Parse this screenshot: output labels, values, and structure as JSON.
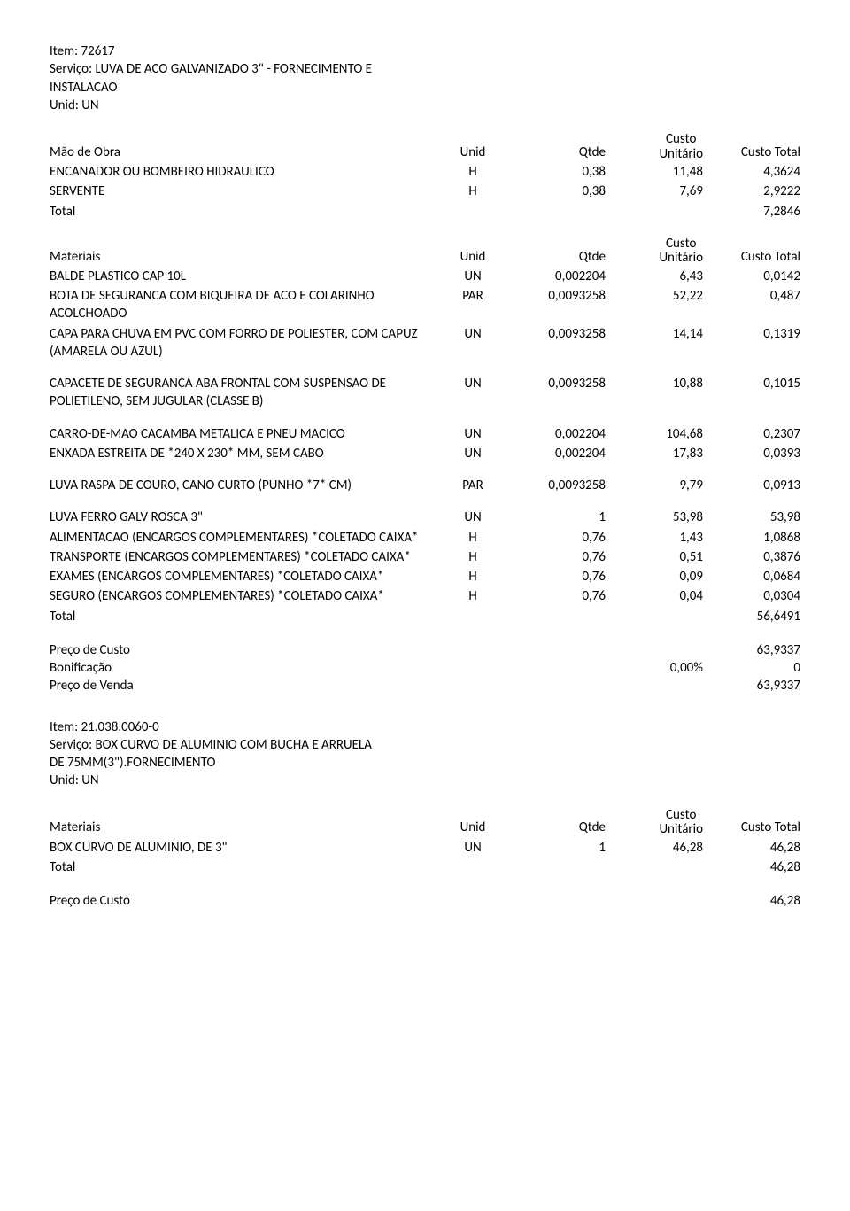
{
  "header1": {
    "item_label": "Item:",
    "item_value": "72617",
    "servico_label": "Serviço:",
    "servico_value": "LUVA DE ACO GALVANIZADO 3\" - FORNECIMENTO E",
    "servico_cont": "INSTALACAO",
    "unid_label": "Unid:",
    "unid_value": "UN"
  },
  "labels": {
    "mao_de_obra": "Mão de Obra",
    "materiais": "Materiais",
    "unid": "Unid",
    "qtde": "Qtde",
    "custo": "Custo",
    "unitario": "Unitário",
    "custo_total": "Custo Total",
    "total": "Total",
    "preco_custo": "Preço de Custo",
    "bonificacao": "Bonificação",
    "preco_venda": "Preço de Venda"
  },
  "mao_rows": [
    {
      "desc": "ENCANADOR OU BOMBEIRO HIDRAULICO",
      "unid": "H",
      "qtde": "0,38",
      "cu": "11,48",
      "ct": "4,3624"
    },
    {
      "desc": "SERVENTE",
      "unid": "H",
      "qtde": "0,38",
      "cu": "7,69",
      "ct": "2,9222"
    }
  ],
  "mao_total": "7,2846",
  "mat_rows": [
    {
      "desc": "BALDE PLASTICO CAP 10L",
      "unid": "UN",
      "qtde": "0,002204",
      "cu": "6,43",
      "ct": "0,0142"
    },
    {
      "desc": "BOTA DE SEGURANCA COM BIQUEIRA DE ACO E COLARINHO ACOLCHOADO",
      "unid": "PAR",
      "qtde": "0,0093258",
      "cu": "52,22",
      "ct": "0,487"
    },
    {
      "desc": "CAPA PARA CHUVA EM PVC COM FORRO DE POLIESTER, COM CAPUZ (AMARELA OU AZUL)",
      "unid": "UN",
      "qtde": "0,0093258",
      "cu": "14,14",
      "ct": "0,1319"
    },
    {
      "desc": "CAPACETE DE SEGURANCA ABA FRONTAL COM SUSPENSAO DE POLIETILENO, SEM JUGULAR (CLASSE B)",
      "unid": "UN",
      "qtde": "0,0093258",
      "cu": "10,88",
      "ct": "0,1015"
    },
    {
      "desc": "CARRO-DE-MAO CACAMBA METALICA E PNEU MACICO",
      "unid": "UN",
      "qtde": "0,002204",
      "cu": "104,68",
      "ct": "0,2307"
    },
    {
      "desc": "ENXADA ESTREITA DE *240 X 230* MM, SEM CABO",
      "unid": "UN",
      "qtde": "0,002204",
      "cu": "17,83",
      "ct": "0,0393"
    },
    {
      "desc": "LUVA RASPA DE COURO, CANO CURTO (PUNHO *7* CM)",
      "unid": "PAR",
      "qtde": "0,0093258",
      "cu": "9,79",
      "ct": "0,0913"
    },
    {
      "desc": "LUVA FERRO GALV ROSCA 3\"",
      "unid": "UN",
      "qtde": "1",
      "cu": "53,98",
      "ct": "53,98"
    },
    {
      "desc": "ALIMENTACAO (ENCARGOS COMPLEMENTARES) *COLETADO CAIXA*",
      "unid": "H",
      "qtde": "0,76",
      "cu": "1,43",
      "ct": "1,0868"
    },
    {
      "desc": "TRANSPORTE (ENCARGOS COMPLEMENTARES) *COLETADO CAIXA*",
      "unid": "H",
      "qtde": "0,76",
      "cu": "0,51",
      "ct": "0,3876"
    },
    {
      "desc": "EXAMES (ENCARGOS COMPLEMENTARES) *COLETADO CAIXA*",
      "unid": "H",
      "qtde": "0,76",
      "cu": "0,09",
      "ct": "0,0684"
    },
    {
      "desc": "SEGURO (ENCARGOS COMPLEMENTARES) *COLETADO CAIXA*",
      "unid": "H",
      "qtde": "0,76",
      "cu": "0,04",
      "ct": "0,0304"
    }
  ],
  "mat_total": "56,6491",
  "summary1": {
    "preco_custo": "63,9337",
    "bonif_pct": "0,00%",
    "bonif_val": "0",
    "preco_venda": "63,9337"
  },
  "header2": {
    "item_label": "Item:",
    "item_value": "21.038.0060-0",
    "servico_label": "Serviço:",
    "servico_value": "BOX CURVO DE ALUMINIO COM BUCHA E ARRUELA",
    "servico_cont": "DE 75MM(3\").FORNECIMENTO",
    "unid_label": "Unid:",
    "unid_value": "UN"
  },
  "mat2_rows": [
    {
      "desc": "BOX CURVO DE ALUMINIO, DE 3\"",
      "unid": "UN",
      "qtde": "1",
      "cu": "46,28",
      "ct": "46,28"
    }
  ],
  "mat2_total": "46,28",
  "summary2": {
    "preco_custo": "46,28"
  }
}
